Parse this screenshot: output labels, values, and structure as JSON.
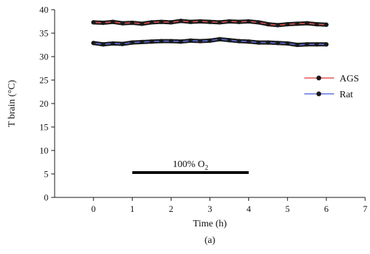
{
  "chart_data": {
    "type": "line",
    "title": "",
    "xlabel": "Time (h)",
    "ylabel": "T brain (°C)",
    "xlim": [
      -1,
      7
    ],
    "ylim": [
      0,
      40
    ],
    "xticks": [
      0,
      1,
      2,
      3,
      4,
      5,
      6,
      7
    ],
    "yticks": [
      0,
      5,
      10,
      15,
      20,
      25,
      30,
      35,
      40
    ],
    "grid": false,
    "legend_position": "right",
    "series": [
      {
        "name": "AGS",
        "line_color": "#e05050",
        "marker_color": "#1a1a1a",
        "x": [
          0,
          0.25,
          0.5,
          0.75,
          1,
          1.25,
          1.5,
          1.75,
          2,
          2.25,
          2.5,
          2.75,
          3,
          3.25,
          3.5,
          3.75,
          4,
          4.25,
          4.5,
          4.75,
          5,
          5.25,
          5.5,
          5.75,
          6
        ],
        "y": [
          37.3,
          37.2,
          37.4,
          37.1,
          37.2,
          37.0,
          37.3,
          37.4,
          37.3,
          37.6,
          37.4,
          37.5,
          37.4,
          37.3,
          37.5,
          37.4,
          37.5,
          37.3,
          36.9,
          36.7,
          36.9,
          37.0,
          37.1,
          36.9,
          36.8
        ]
      },
      {
        "name": "Rat",
        "line_color": "#5a6fe0",
        "marker_color": "#1a1a1a",
        "x": [
          0,
          0.25,
          0.5,
          0.75,
          1,
          1.25,
          1.5,
          1.75,
          2,
          2.25,
          2.5,
          2.75,
          3,
          3.25,
          3.5,
          3.75,
          4,
          4.25,
          4.5,
          4.75,
          5,
          5.25,
          5.5,
          5.75,
          6
        ],
        "y": [
          32.9,
          32.6,
          32.8,
          32.7,
          33.0,
          33.1,
          33.2,
          33.3,
          33.3,
          33.2,
          33.4,
          33.3,
          33.4,
          33.7,
          33.5,
          33.3,
          33.2,
          33.0,
          33.0,
          32.9,
          32.8,
          32.5,
          32.6,
          32.6,
          32.6
        ]
      }
    ],
    "annotations": [
      {
        "label_main": "100% O",
        "label_sub": "2",
        "x_start": 1,
        "x_end": 4,
        "y": 5.3
      }
    ],
    "panel_label": "(a)"
  }
}
